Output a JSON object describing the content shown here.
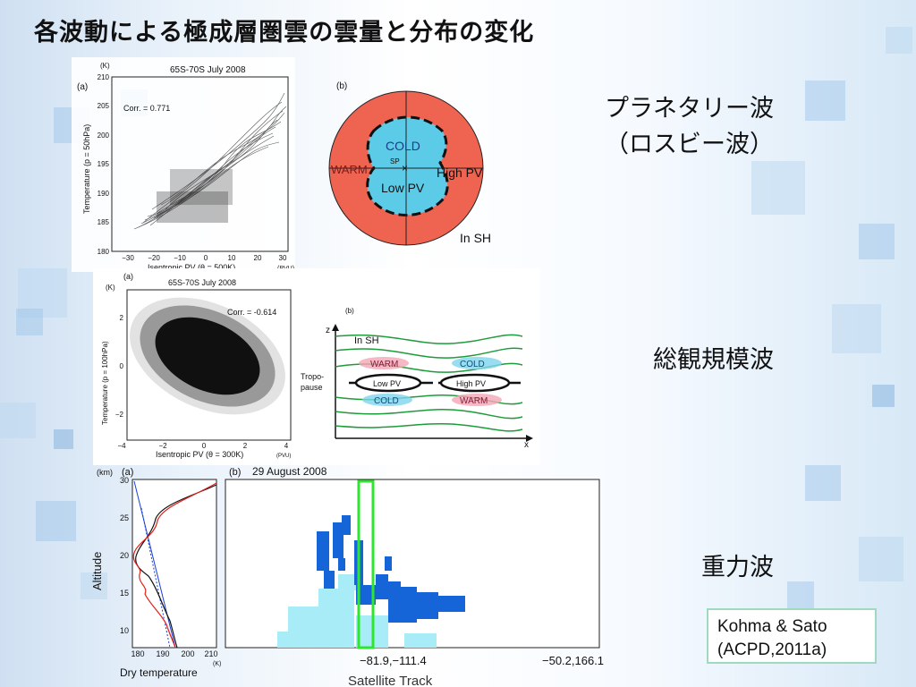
{
  "title": "各波動による極成層圏雲の雲量と分布の変化",
  "waves": {
    "planetary_line1": "プラネタリー波",
    "planetary_line2": "（ロスビー波）",
    "synoptic": "総観規模波",
    "gravity": "重力波"
  },
  "reference": {
    "line1": "Kohma & Sato",
    "line2": "(ACPD,2011a)"
  },
  "fig1": {
    "unit_k": "(K)",
    "panel_a": "(a)",
    "header": "65S-70S July 2008",
    "corr": "Corr. = 0.771",
    "ylabel": "Temperature (p = 50hPa)",
    "xlabel": "Isentropic PV (θ = 500K)",
    "xunit": "(PVU)",
    "yticks": [
      "180",
      "185",
      "190",
      "195",
      "200",
      "205",
      "210"
    ],
    "xticks": [
      "−30",
      "−20",
      "−10",
      "0",
      "10",
      "20",
      "30"
    ],
    "panel_b": "(b)",
    "cold": "COLD",
    "sp": "SP",
    "warm": "WARM",
    "high_pv": "High PV",
    "low_pv": "Low PV",
    "in_sh": "In SH"
  },
  "fig2": {
    "unit_k": "(K)",
    "panel_a": "(a)",
    "header": "65S-70S July 2008",
    "corr": "Corr. = -0.614",
    "ylabel": "Temperature (p = 100hPa)",
    "xlabel": "Isentropic PV (θ = 300K)",
    "xunit": "(PVU)",
    "yticks": [
      "−2",
      "0",
      "2"
    ],
    "xticks": [
      "−4",
      "−2",
      "0",
      "2",
      "4"
    ],
    "panel_b": "(b)",
    "z": "z",
    "x": "x",
    "in_sh": "In SH",
    "tropo1": "Tropo-",
    "tropo2": "pause",
    "warm": "WARM",
    "cold": "COLD",
    "low_pv": "Low PV",
    "high_pv": "High PV"
  },
  "fig3": {
    "unit_km": "(km)",
    "panel_a": "(a)",
    "panel_b": "(b)",
    "date": "29 August 2008",
    "ylabel": "Altitude",
    "xlabel": "Dry temperature",
    "xunit": "(K)",
    "yticks": [
      "10",
      "15",
      "20",
      "25",
      "30"
    ],
    "xticks": [
      "180",
      "190",
      "200",
      "210"
    ],
    "track_tick1": "−81.9,−111.4",
    "track_tick2": "−50.2,166.1",
    "track_label": "Satellite Track"
  },
  "colors": {
    "red_region": "#ef6351",
    "cyan_region": "#5ccbe8",
    "cloud_blue": "#1565d8",
    "cloud_cyan": "#a8ecf7",
    "highlight": "#2ee62e"
  }
}
